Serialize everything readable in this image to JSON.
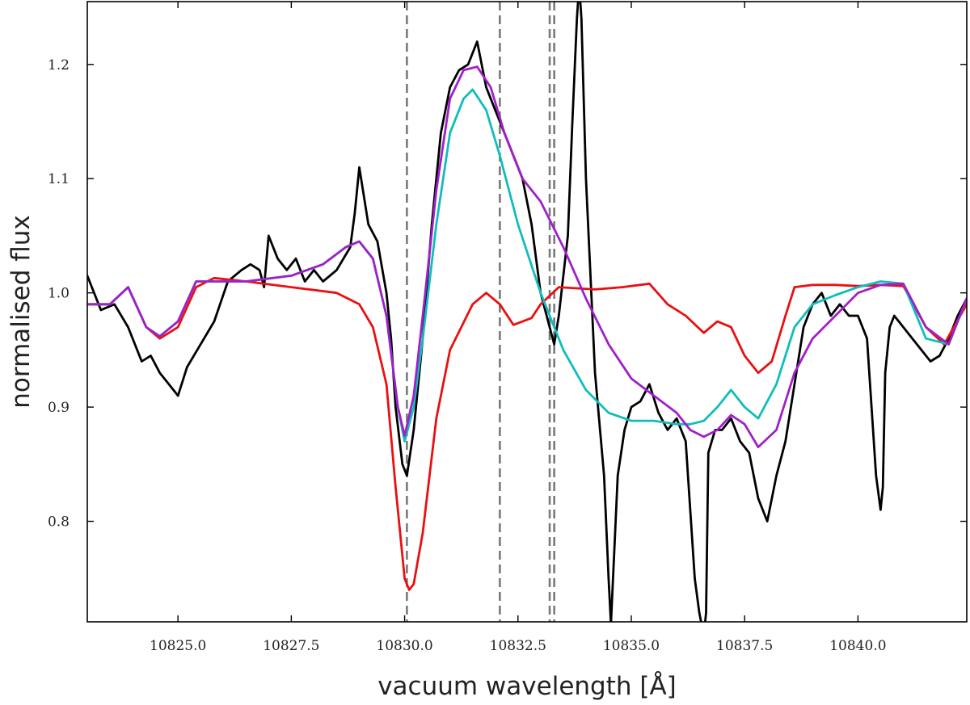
{
  "chart_data": {
    "type": "line",
    "title": "",
    "xlabel": "vacuum wavelength [Å]",
    "ylabel": "normalised flux",
    "xlim": [
      10823.0,
      10842.4
    ],
    "ylim": [
      0.712,
      1.255
    ],
    "xticks": [
      {
        "value": 10825.0,
        "label": "10825.0"
      },
      {
        "value": 10827.5,
        "label": "10827.5"
      },
      {
        "value": 10830.0,
        "label": "10830.0"
      },
      {
        "value": 10832.5,
        "label": "10832.5"
      },
      {
        "value": 10835.0,
        "label": "10835.0"
      },
      {
        "value": 10837.5,
        "label": "10837.5"
      },
      {
        "value": 10840.0,
        "label": "10840.0"
      }
    ],
    "yticks": [
      {
        "value": 0.8,
        "label": "0.8"
      },
      {
        "value": 0.9,
        "label": "0.9"
      },
      {
        "value": 1.0,
        "label": "1.0"
      },
      {
        "value": 1.1,
        "label": "1.1"
      },
      {
        "value": 1.2,
        "label": "1.2"
      }
    ],
    "grid": false,
    "vertical_lines": [
      10830.05,
      10832.1,
      10833.2,
      10833.3
    ],
    "series": [
      {
        "color": "#000000",
        "x": [
          10823.0,
          10823.3,
          10823.6,
          10823.9,
          10824.2,
          10824.4,
          10824.6,
          10824.8,
          10825.0,
          10825.2,
          10825.5,
          10825.8,
          10826.1,
          10826.4,
          10826.6,
          10826.8,
          10826.9,
          10827.0,
          10827.2,
          10827.4,
          10827.6,
          10827.8,
          10828.0,
          10828.2,
          10828.5,
          10828.8,
          10828.9,
          10829.0,
          10829.2,
          10829.4,
          10829.6,
          10829.7,
          10829.8,
          10829.95,
          10830.05,
          10830.2,
          10830.4,
          10830.6,
          10830.8,
          10831.0,
          10831.2,
          10831.4,
          10831.6,
          10831.8,
          10831.9,
          10832.0,
          10832.2,
          10832.4,
          10832.6,
          10832.8,
          10833.0,
          10833.2,
          10833.3,
          10833.4,
          10833.6,
          10833.7,
          10833.8,
          10833.85,
          10833.9,
          10834.0,
          10834.2,
          10834.4,
          10834.5,
          10834.55,
          10834.7,
          10834.85,
          10835.0,
          10835.2,
          10835.4,
          10835.6,
          10835.8,
          10836.0,
          10836.2,
          10836.4,
          10836.5,
          10836.6,
          10836.65,
          10836.7,
          10836.85,
          10837.0,
          10837.2,
          10837.4,
          10837.6,
          10837.8,
          10838.0,
          10838.2,
          10838.4,
          10838.6,
          10838.8,
          10839.0,
          10839.2,
          10839.4,
          10839.6,
          10839.8,
          10840.0,
          10840.2,
          10840.4,
          10840.5,
          10840.55,
          10840.6,
          10840.7,
          10840.8,
          10841.0,
          10841.2,
          10841.4,
          10841.6,
          10841.8,
          10842.0,
          10842.2,
          10842.4
        ],
        "y": [
          1.015,
          0.985,
          0.99,
          0.97,
          0.94,
          0.945,
          0.93,
          0.92,
          0.91,
          0.935,
          0.955,
          0.975,
          1.01,
          1.02,
          1.025,
          1.02,
          1.005,
          1.05,
          1.03,
          1.02,
          1.03,
          1.01,
          1.02,
          1.01,
          1.02,
          1.04,
          1.07,
          1.11,
          1.06,
          1.045,
          1.0,
          0.96,
          0.9,
          0.85,
          0.84,
          0.88,
          0.96,
          1.06,
          1.14,
          1.18,
          1.195,
          1.2,
          1.22,
          1.18,
          1.17,
          1.16,
          1.14,
          1.12,
          1.1,
          1.06,
          1.0,
          0.97,
          0.955,
          0.98,
          1.05,
          1.15,
          1.24,
          1.27,
          1.24,
          1.1,
          0.93,
          0.84,
          0.75,
          0.71,
          0.84,
          0.88,
          0.9,
          0.905,
          0.92,
          0.895,
          0.88,
          0.89,
          0.87,
          0.75,
          0.72,
          0.7,
          0.72,
          0.86,
          0.88,
          0.88,
          0.89,
          0.87,
          0.86,
          0.82,
          0.8,
          0.84,
          0.87,
          0.92,
          0.97,
          0.99,
          1.0,
          0.98,
          0.99,
          0.98,
          0.98,
          0.96,
          0.84,
          0.81,
          0.83,
          0.93,
          0.97,
          0.98,
          0.97,
          0.96,
          0.95,
          0.94,
          0.945,
          0.96,
          0.98,
          0.995
        ]
      },
      {
        "color": "#e81010",
        "x": [
          10823.0,
          10823.5,
          10823.9,
          10824.3,
          10824.6,
          10825.0,
          10825.4,
          10825.8,
          10826.5,
          10827.5,
          10828.5,
          10829.0,
          10829.3,
          10829.6,
          10829.8,
          10830.0,
          10830.1,
          10830.2,
          10830.4,
          10830.7,
          10831.0,
          10831.5,
          10831.8,
          10832.1,
          10832.4,
          10832.8,
          10833.0,
          10833.4,
          10833.8,
          10834.2,
          10834.8,
          10835.4,
          10835.8,
          10836.2,
          10836.6,
          10836.9,
          10837.2,
          10837.5,
          10837.8,
          10838.1,
          10838.4,
          10838.6,
          10839.0,
          10839.5,
          10840.0,
          10840.5,
          10841.0,
          10841.5,
          10841.9,
          10842.4
        ],
        "y": [
          0.99,
          0.99,
          1.005,
          0.97,
          0.96,
          0.97,
          1.005,
          1.013,
          1.01,
          1.005,
          1.0,
          0.99,
          0.97,
          0.92,
          0.83,
          0.75,
          0.74,
          0.745,
          0.79,
          0.89,
          0.95,
          0.99,
          1.0,
          0.99,
          0.972,
          0.978,
          0.99,
          1.005,
          1.004,
          1.003,
          1.005,
          1.008,
          0.99,
          0.98,
          0.965,
          0.975,
          0.97,
          0.945,
          0.93,
          0.94,
          0.98,
          1.005,
          1.007,
          1.007,
          1.006,
          1.007,
          1.006,
          0.97,
          0.955,
          0.99
        ]
      },
      {
        "color": "#10bdbd",
        "x": [
          10823.0,
          10823.5,
          10823.9,
          10824.3,
          10824.6,
          10825.0,
          10825.4,
          10826.5,
          10827.5,
          10828.2,
          10828.7,
          10829.0,
          10829.3,
          10829.6,
          10829.85,
          10830.0,
          10830.2,
          10830.4,
          10830.7,
          10831.0,
          10831.3,
          10831.5,
          10831.8,
          10832.1,
          10832.5,
          10833.0,
          10833.5,
          10834.0,
          10834.5,
          10835.0,
          10835.5,
          10836.0,
          10836.3,
          10836.6,
          10836.9,
          10837.2,
          10837.5,
          10837.8,
          10838.2,
          10838.6,
          10839.0,
          10839.5,
          10840.0,
          10840.5,
          10841.0,
          10841.5,
          10842.0,
          10842.4
        ],
        "y": [
          0.99,
          0.99,
          1.005,
          0.97,
          0.962,
          0.975,
          1.01,
          1.01,
          1.015,
          1.025,
          1.04,
          1.045,
          1.03,
          0.98,
          0.9,
          0.87,
          0.9,
          0.96,
          1.06,
          1.14,
          1.17,
          1.178,
          1.16,
          1.12,
          1.06,
          1.0,
          0.95,
          0.915,
          0.895,
          0.888,
          0.888,
          0.885,
          0.885,
          0.888,
          0.9,
          0.915,
          0.9,
          0.89,
          0.92,
          0.97,
          0.99,
          0.998,
          1.005,
          1.01,
          1.008,
          0.96,
          0.955,
          0.995
        ]
      },
      {
        "color": "#a020c8",
        "x": [
          10823.0,
          10823.5,
          10823.9,
          10824.3,
          10824.6,
          10825.0,
          10825.4,
          10826.5,
          10827.5,
          10828.2,
          10828.7,
          10829.0,
          10829.3,
          10829.6,
          10829.85,
          10830.0,
          10830.2,
          10830.4,
          10830.7,
          10831.0,
          10831.3,
          10831.6,
          10831.9,
          10832.2,
          10832.6,
          10833.0,
          10833.5,
          10834.0,
          10834.5,
          10835.0,
          10835.5,
          10836.0,
          10836.3,
          10836.6,
          10836.9,
          10837.2,
          10837.5,
          10837.8,
          10838.2,
          10838.6,
          10839.0,
          10839.5,
          10840.0,
          10840.5,
          10841.0,
          10841.5,
          10842.0,
          10842.4
        ],
        "y": [
          0.99,
          0.99,
          1.005,
          0.97,
          0.962,
          0.975,
          1.01,
          1.01,
          1.015,
          1.025,
          1.04,
          1.045,
          1.03,
          0.98,
          0.9,
          0.875,
          0.91,
          0.98,
          1.09,
          1.17,
          1.195,
          1.198,
          1.18,
          1.14,
          1.1,
          1.08,
          1.04,
          0.995,
          0.955,
          0.925,
          0.91,
          0.895,
          0.88,
          0.874,
          0.88,
          0.893,
          0.885,
          0.865,
          0.88,
          0.93,
          0.96,
          0.98,
          1.0,
          1.007,
          1.008,
          0.97,
          0.955,
          0.995
        ]
      }
    ]
  }
}
